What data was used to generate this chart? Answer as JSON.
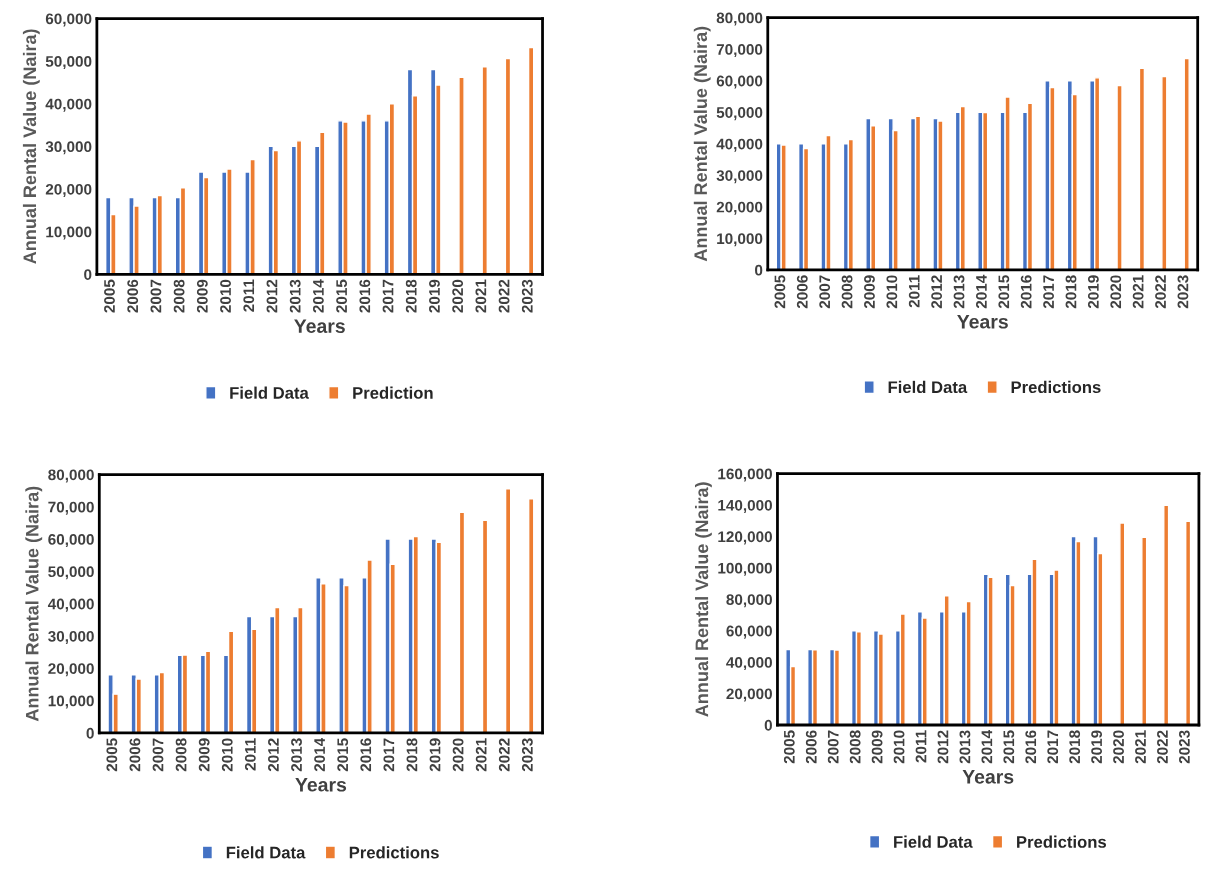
{
  "chart_data": [
    {
      "type": "bar",
      "xlabel": "Years",
      "ylabel": "Annual Rental Value (Naira)",
      "categories": [
        "2005",
        "2006",
        "2007",
        "2008",
        "2009",
        "2010",
        "2011",
        "2012",
        "2013",
        "2014",
        "2015",
        "2016",
        "2017",
        "2018",
        "2019",
        "2020",
        "2021",
        "2022",
        "2023"
      ],
      "series": [
        {
          "name": "Field Data",
          "color": "#4472c4",
          "values": [
            18000,
            18000,
            18000,
            18000,
            24000,
            24000,
            24000,
            30000,
            30000,
            30000,
            36000,
            36000,
            36000,
            48000,
            48000,
            null,
            null,
            null,
            null
          ]
        },
        {
          "name": "Prediction",
          "color": "#ed7d31",
          "values": [
            14000,
            16000,
            18500,
            20300,
            22700,
            24700,
            26900,
            29000,
            31300,
            33300,
            35700,
            37600,
            40000,
            41900,
            44400,
            46200,
            48700,
            50600,
            53200
          ]
        }
      ],
      "ylim": [
        0,
        60000
      ],
      "yticks": [
        {
          "value": 0,
          "label": "0"
        },
        {
          "value": 10000,
          "label": "10,000"
        },
        {
          "value": 20000,
          "label": "20,000"
        },
        {
          "value": 30000,
          "label": "30,000"
        },
        {
          "value": 40000,
          "label": "40,000"
        },
        {
          "value": 50000,
          "label": "50,000"
        },
        {
          "value": 60000,
          "label": "60,000"
        }
      ],
      "grid": false,
      "legend": "bottom"
    },
    {
      "type": "bar",
      "xlabel": "Years",
      "ylabel": "Annual Rental Value (Naira)",
      "categories": [
        "2005",
        "2006",
        "2007",
        "2008",
        "2009",
        "2010",
        "2011",
        "2012",
        "2013",
        "2014",
        "2015",
        "2016",
        "2017",
        "2018",
        "2019",
        "2020",
        "2021",
        "2022",
        "2023"
      ],
      "series": [
        {
          "name": "Field Data",
          "color": "#4472c4",
          "values": [
            40000,
            40000,
            40000,
            40000,
            48000,
            48000,
            48000,
            48000,
            50000,
            50000,
            50000,
            50000,
            60000,
            60000,
            60000,
            null,
            null,
            null,
            null
          ]
        },
        {
          "name": "Predictions",
          "color": "#ed7d31",
          "values": [
            39600,
            38500,
            42600,
            41300,
            45700,
            44200,
            48700,
            47200,
            51800,
            49900,
            54800,
            52800,
            57800,
            55600,
            60900,
            58500,
            63900,
            61300,
            67000
          ]
        }
      ],
      "ylim": [
        0,
        80000
      ],
      "yticks": [
        {
          "value": 0,
          "label": "0"
        },
        {
          "value": 10000,
          "label": "10,000"
        },
        {
          "value": 20000,
          "label": "20,000"
        },
        {
          "value": 30000,
          "label": "30,000"
        },
        {
          "value": 40000,
          "label": "40,000"
        },
        {
          "value": 50000,
          "label": "50,000"
        },
        {
          "value": 60000,
          "label": "60,000"
        },
        {
          "value": 70000,
          "label": "70,000"
        },
        {
          "value": 80000,
          "label": "80,000"
        }
      ],
      "grid": false,
      "legend": "bottom"
    },
    {
      "type": "bar",
      "xlabel": "Years",
      "ylabel": "Annual Rental Value (Naira)",
      "categories": [
        "2005",
        "2006",
        "2007",
        "2008",
        "2009",
        "2010",
        "2011",
        "2012",
        "2013",
        "2014",
        "2015",
        "2016",
        "2017",
        "2018",
        "2019",
        "2020",
        "2021",
        "2022",
        "2023"
      ],
      "series": [
        {
          "name": "Field Data",
          "color": "#4472c4",
          "values": [
            18000,
            18000,
            18000,
            24000,
            24000,
            24000,
            36000,
            36000,
            36000,
            48000,
            48000,
            48000,
            60000,
            60000,
            60000,
            null,
            null,
            null,
            null
          ]
        },
        {
          "name": "Predictions",
          "color": "#ed7d31",
          "values": [
            12000,
            16700,
            18700,
            24100,
            25300,
            31500,
            32100,
            38800,
            38800,
            46200,
            45600,
            53500,
            52200,
            60800,
            59000,
            68300,
            65800,
            75600,
            72500
          ]
        }
      ],
      "ylim": [
        0,
        80000
      ],
      "yticks": [
        {
          "value": 0,
          "label": "0"
        },
        {
          "value": 10000,
          "label": "10,000"
        },
        {
          "value": 20000,
          "label": "20,000"
        },
        {
          "value": 30000,
          "label": "30,000"
        },
        {
          "value": 40000,
          "label": "40,000"
        },
        {
          "value": 50000,
          "label": "50,000"
        },
        {
          "value": 60000,
          "label": "60,000"
        },
        {
          "value": 70000,
          "label": "70,000"
        },
        {
          "value": 80000,
          "label": "80,000"
        }
      ],
      "grid": false,
      "legend": "bottom"
    },
    {
      "type": "bar",
      "xlabel": "Years",
      "ylabel": "Annual Rental Value (Naira)",
      "categories": [
        "2005",
        "2006",
        "2007",
        "2008",
        "2009",
        "2010",
        "2011",
        "2012",
        "2013",
        "2014",
        "2015",
        "2016",
        "2017",
        "2018",
        "2019",
        "2020",
        "2021",
        "2022",
        "2023"
      ],
      "series": [
        {
          "name": "Field Data",
          "color": "#4472c4",
          "values": [
            48000,
            48000,
            48000,
            60000,
            60000,
            60000,
            72000,
            72000,
            72000,
            96000,
            96000,
            96000,
            96000,
            120000,
            120000,
            null,
            null,
            null,
            null
          ]
        },
        {
          "name": "Predictions",
          "color": "#ed7d31",
          "values": [
            37200,
            47900,
            47700,
            59400,
            57900,
            70600,
            68100,
            82300,
            78500,
            94000,
            88700,
            105500,
            98700,
            116800,
            109100,
            128500,
            119400,
            139800,
            129600
          ]
        }
      ],
      "ylim": [
        0,
        160000
      ],
      "yticks": [
        {
          "value": 0,
          "label": "0"
        },
        {
          "value": 20000,
          "label": "20,000"
        },
        {
          "value": 40000,
          "label": "40,000"
        },
        {
          "value": 60000,
          "label": "60,000"
        },
        {
          "value": 80000,
          "label": "80,000"
        },
        {
          "value": 100000,
          "label": "100,000"
        },
        {
          "value": 120000,
          "label": "120,000"
        },
        {
          "value": 140000,
          "label": "140,000"
        },
        {
          "value": 160000,
          "label": "160,000"
        }
      ],
      "grid": false,
      "legend": "bottom"
    }
  ]
}
